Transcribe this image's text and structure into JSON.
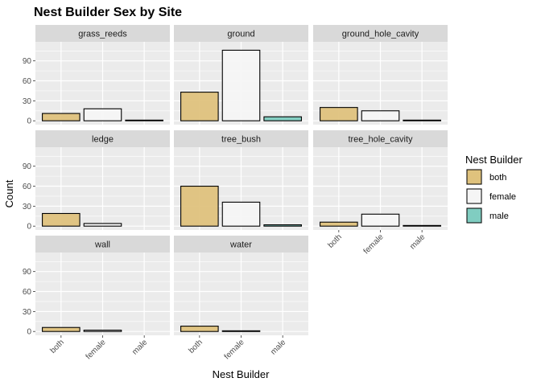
{
  "chart_data": {
    "type": "bar",
    "title": "Nest Builder Sex by Site",
    "xlabel": "Nest Builder",
    "ylabel": "Count",
    "categories": [
      "both",
      "female",
      "male"
    ],
    "colors": {
      "both": "#dfc27d",
      "female": "#f5f5f5",
      "male": "#80cdc1"
    },
    "ylim": [
      0,
      115
    ],
    "yticks": [
      0,
      30,
      60,
      90
    ],
    "ytick_labels": [
      "0",
      "30",
      "60",
      "90"
    ],
    "grid": true,
    "legend": {
      "title": "Nest Builder",
      "position": "right",
      "entries": [
        "both",
        "female",
        "male"
      ]
    },
    "facets": [
      {
        "name": "grass_reeds",
        "values": [
          11,
          18,
          1
        ]
      },
      {
        "name": "ground",
        "values": [
          43,
          106,
          6
        ]
      },
      {
        "name": "ground_hole_cavity",
        "values": [
          20,
          15,
          1
        ]
      },
      {
        "name": "ledge",
        "values": [
          19,
          4,
          0
        ]
      },
      {
        "name": "tree_bush",
        "values": [
          60,
          36,
          2
        ]
      },
      {
        "name": "tree_hole_cavity",
        "values": [
          6,
          18,
          1
        ]
      },
      {
        "name": "wall",
        "values": [
          6,
          2,
          0
        ]
      },
      {
        "name": "water",
        "values": [
          8,
          1,
          0
        ]
      }
    ]
  }
}
